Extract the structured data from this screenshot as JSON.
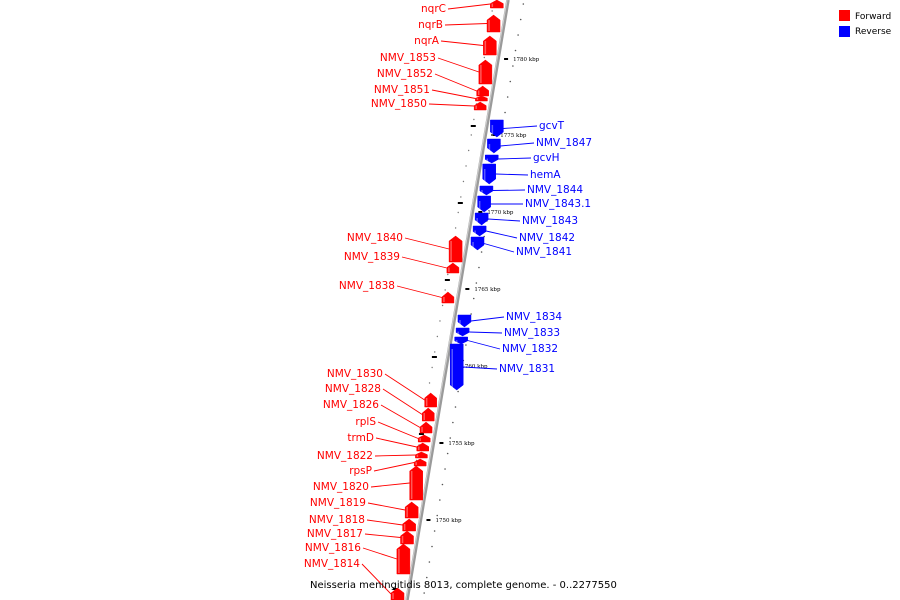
{
  "caption": "Neisseria meningitidis 8013, complete genome. - 0..2277550",
  "legend": [
    {
      "label": "Forward",
      "color": "#ff0000"
    },
    {
      "label": "Reverse",
      "color": "#0000ff"
    }
  ],
  "colors": {
    "forward": "#ff0000",
    "reverse": "#0000ff",
    "backbone": "#888888"
  },
  "ticks": [
    "1780 kbp",
    "1775 kbp",
    "1770 kbp",
    "1765 kbp",
    "1760 kbp",
    "1755 kbp",
    "1750 kbp"
  ],
  "forward_genes": [
    "nqrC",
    "nqrB",
    "nqrA",
    "NMV_1853",
    "NMV_1852",
    "NMV_1851",
    "NMV_1850",
    "NMV_1840",
    "NMV_1839",
    "NMV_1838",
    "NMV_1830",
    "NMV_1828",
    "NMV_1826",
    "rplS",
    "trmD",
    "NMV_1822",
    "rpsP",
    "NMV_1820",
    "NMV_1819",
    "NMV_1818",
    "NMV_1817",
    "NMV_1816",
    "NMV_1814"
  ],
  "reverse_genes": [
    "gcvT",
    "NMV_1847",
    "gcvH",
    "hemA",
    "NMV_1844",
    "NMV_1843.1",
    "NMV_1843",
    "NMV_1842",
    "NMV_1841",
    "NMV_1834",
    "NMV_1833",
    "NMV_1832",
    "NMV_1831"
  ]
}
